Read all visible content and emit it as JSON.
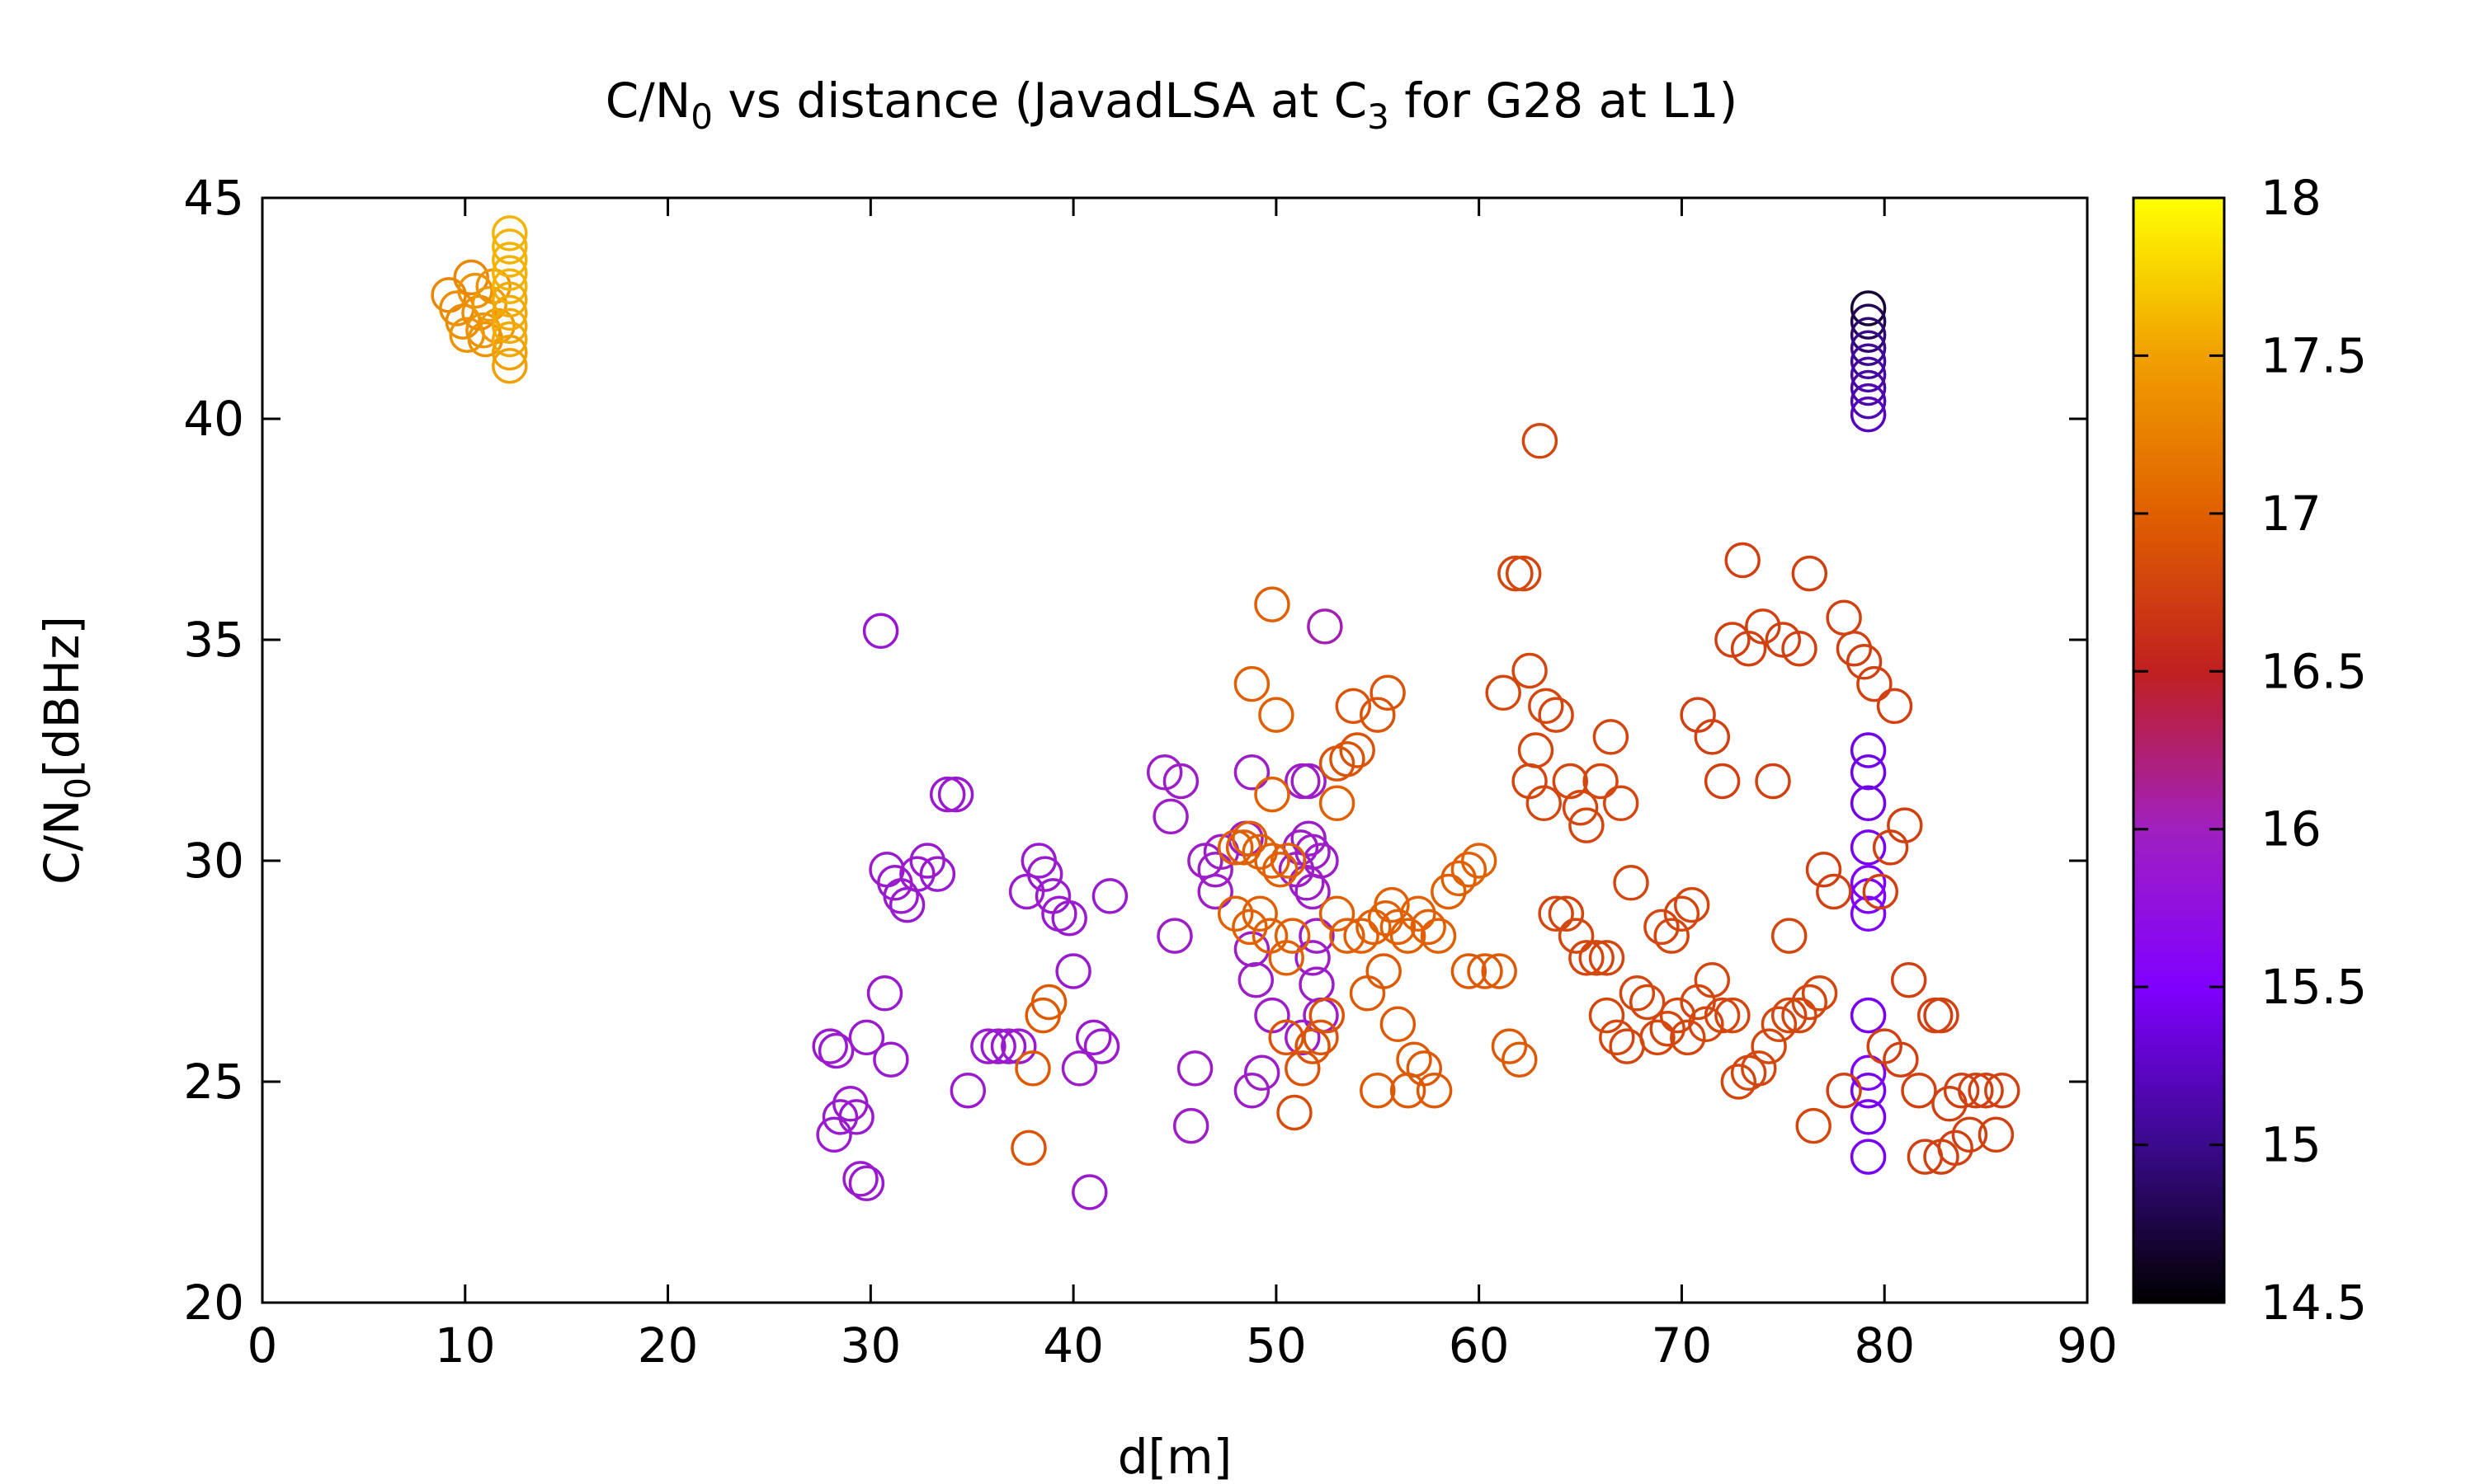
{
  "chart_data": {
    "type": "scatter",
    "title": {
      "prefix": "C/N",
      "sub1": "0",
      "middle": " vs distance (JavadLSA at C",
      "sub2": "3",
      "suffix": " for G28 at L1)"
    },
    "xlabel": "d[m]",
    "ylabel": {
      "prefix": "C/N",
      "sub": "0",
      "suffix": "[dBHz]"
    },
    "xlim": [
      0,
      90
    ],
    "ylim": [
      20,
      45
    ],
    "xticks": [
      "0",
      "10",
      "20",
      "30",
      "40",
      "50",
      "60",
      "70",
      "80",
      "90"
    ],
    "yticks": [
      "20",
      "25",
      "30",
      "35",
      "40",
      "45"
    ],
    "colorbar": {
      "range": [
        14.5,
        18
      ],
      "ticks": [
        "14.5",
        "15",
        "15.5",
        "16",
        "16.5",
        "17",
        "17.5",
        "18"
      ],
      "palette": [
        "#000000",
        "#3a0a8c",
        "#8000ff",
        "#a020c0",
        "#c02020",
        "#e06000",
        "#f0a000",
        "#ffff00"
      ]
    },
    "grid": false,
    "marker": "open-circle",
    "points": [
      [
        9.2,
        42.8,
        17.3
      ],
      [
        9.6,
        42.5,
        17.35
      ],
      [
        9.9,
        42.2,
        17.35
      ],
      [
        10.1,
        41.9,
        17.4
      ],
      [
        10.3,
        43.2,
        17.3
      ],
      [
        10.5,
        42.9,
        17.4
      ],
      [
        10.7,
        42.4,
        17.35
      ],
      [
        10.9,
        42.0,
        17.4
      ],
      [
        11.0,
        41.8,
        17.4
      ],
      [
        11.2,
        42.6,
        17.45
      ],
      [
        11.4,
        43.0,
        17.4
      ],
      [
        11.6,
        42.1,
        17.45
      ],
      [
        12.2,
        44.2,
        17.6
      ],
      [
        12.2,
        43.9,
        17.6
      ],
      [
        12.2,
        43.6,
        17.6
      ],
      [
        12.2,
        43.3,
        17.6
      ],
      [
        12.2,
        43.0,
        17.6
      ],
      [
        12.2,
        42.7,
        17.55
      ],
      [
        12.2,
        42.4,
        17.55
      ],
      [
        12.2,
        42.1,
        17.55
      ],
      [
        12.2,
        41.8,
        17.55
      ],
      [
        12.2,
        41.5,
        17.5
      ],
      [
        12.2,
        41.2,
        17.5
      ],
      [
        79.2,
        42.5,
        14.7
      ],
      [
        79.2,
        42.2,
        14.8
      ],
      [
        79.2,
        41.9,
        14.9
      ],
      [
        79.2,
        41.6,
        15.0
      ],
      [
        79.2,
        41.3,
        15.05
      ],
      [
        79.2,
        41.0,
        15.1
      ],
      [
        79.2,
        40.7,
        15.1
      ],
      [
        79.2,
        40.4,
        15.15
      ],
      [
        79.2,
        40.1,
        15.2
      ],
      [
        79.2,
        32.5,
        15.4
      ],
      [
        79.2,
        32.0,
        15.4
      ],
      [
        79.2,
        31.3,
        15.4
      ],
      [
        79.2,
        30.3,
        15.45
      ],
      [
        79.2,
        29.5,
        15.5
      ],
      [
        79.2,
        29.2,
        15.5
      ],
      [
        79.2,
        28.8,
        15.5
      ],
      [
        79.2,
        26.5,
        15.45
      ],
      [
        79.2,
        25.2,
        15.5
      ],
      [
        79.2,
        24.8,
        15.45
      ],
      [
        79.2,
        24.2,
        15.45
      ],
      [
        79.2,
        23.3,
        15.45
      ],
      [
        30.5,
        35.2,
        15.85
      ],
      [
        33.8,
        31.5,
        15.9
      ],
      [
        34.2,
        31.5,
        15.9
      ],
      [
        30.8,
        29.8,
        15.9
      ],
      [
        31.2,
        29.5,
        15.9
      ],
      [
        31.8,
        29.0,
        15.9
      ],
      [
        32.3,
        29.7,
        15.9
      ],
      [
        32.8,
        30.0,
        15.9
      ],
      [
        33.3,
        29.7,
        15.9
      ],
      [
        31.5,
        29.2,
        15.9
      ],
      [
        30.7,
        27.0,
        15.9
      ],
      [
        29.8,
        26.0,
        15.9
      ],
      [
        31.0,
        25.5,
        15.9
      ],
      [
        28.0,
        25.8,
        15.9
      ],
      [
        28.3,
        25.7,
        15.9
      ],
      [
        28.5,
        24.2,
        15.9
      ],
      [
        29.0,
        24.5,
        15.9
      ],
      [
        29.3,
        24.2,
        15.9
      ],
      [
        28.2,
        23.8,
        15.9
      ],
      [
        29.5,
        22.8,
        15.9
      ],
      [
        29.8,
        22.7,
        15.9
      ],
      [
        34.8,
        24.8,
        15.9
      ],
      [
        35.8,
        25.8,
        15.9
      ],
      [
        36.3,
        25.8,
        15.9
      ],
      [
        36.8,
        25.8,
        15.9
      ],
      [
        37.3,
        25.8,
        15.9
      ],
      [
        37.7,
        29.3,
        15.9
      ],
      [
        38.3,
        30.0,
        15.9
      ],
      [
        38.6,
        29.7,
        15.9
      ],
      [
        39.0,
        29.2,
        15.9
      ],
      [
        39.3,
        28.8,
        15.9
      ],
      [
        39.8,
        28.7,
        15.9
      ],
      [
        41.8,
        29.2,
        15.9
      ],
      [
        40.0,
        27.5,
        15.9
      ],
      [
        41.0,
        26.0,
        15.9
      ],
      [
        41.4,
        25.8,
        15.9
      ],
      [
        40.3,
        25.3,
        15.95
      ],
      [
        40.8,
        22.5,
        15.9
      ],
      [
        44.5,
        32.0,
        15.95
      ],
      [
        44.8,
        31.0,
        15.95
      ],
      [
        45.3,
        31.8,
        15.95
      ],
      [
        45.0,
        28.3,
        15.95
      ],
      [
        46.0,
        25.3,
        15.95
      ],
      [
        45.8,
        24.0,
        15.95
      ],
      [
        46.5,
        30.0,
        15.95
      ],
      [
        47.0,
        29.8,
        15.95
      ],
      [
        47.3,
        30.2,
        15.95
      ],
      [
        47.0,
        29.3,
        15.95
      ],
      [
        48.8,
        32.0,
        15.95
      ],
      [
        48.5,
        30.5,
        15.95
      ],
      [
        48.8,
        28.0,
        15.95
      ],
      [
        49.0,
        27.3,
        15.95
      ],
      [
        49.3,
        25.2,
        15.95
      ],
      [
        48.8,
        24.8,
        15.95
      ],
      [
        49.8,
        26.5,
        15.95
      ],
      [
        51.3,
        31.8,
        15.95
      ],
      [
        51.6,
        31.8,
        15.95
      ],
      [
        51.2,
        30.3,
        15.95
      ],
      [
        51.6,
        30.5,
        15.95
      ],
      [
        51.8,
        30.2,
        15.95
      ],
      [
        52.2,
        30.0,
        15.95
      ],
      [
        51.0,
        29.8,
        15.95
      ],
      [
        51.5,
        29.5,
        15.95
      ],
      [
        51.8,
        29.3,
        15.95
      ],
      [
        52.0,
        28.3,
        15.95
      ],
      [
        51.8,
        27.8,
        15.95
      ],
      [
        52.0,
        27.2,
        15.95
      ],
      [
        52.2,
        26.5,
        15.95
      ],
      [
        51.3,
        26.0,
        15.95
      ],
      [
        52.4,
        35.3,
        16.05
      ],
      [
        49.8,
        35.8,
        17.0
      ],
      [
        48.8,
        34.0,
        17.0
      ],
      [
        50.0,
        33.3,
        17.0
      ],
      [
        53.0,
        31.3,
        17.0
      ],
      [
        49.8,
        31.5,
        17.0
      ],
      [
        48.0,
        30.3,
        17.0
      ],
      [
        48.4,
        30.3,
        17.0
      ],
      [
        48.7,
        30.5,
        17.0
      ],
      [
        49.2,
        30.2,
        17.0
      ],
      [
        49.8,
        30.0,
        17.0
      ],
      [
        50.2,
        29.8,
        17.0
      ],
      [
        50.6,
        30.0,
        17.0
      ],
      [
        48.0,
        28.8,
        17.0
      ],
      [
        48.7,
        28.5,
        17.0
      ],
      [
        49.2,
        28.8,
        17.0
      ],
      [
        49.7,
        28.3,
        17.0
      ],
      [
        50.5,
        27.8,
        17.0
      ],
      [
        50.8,
        28.3,
        17.0
      ],
      [
        50.5,
        26.0,
        16.9
      ],
      [
        51.3,
        25.3,
        16.9
      ],
      [
        51.8,
        25.8,
        16.9
      ],
      [
        52.5,
        26.5,
        16.9
      ],
      [
        52.2,
        26.0,
        16.9
      ],
      [
        50.9,
        24.3,
        16.85
      ],
      [
        53.0,
        32.2,
        16.9
      ],
      [
        53.5,
        32.3,
        16.9
      ],
      [
        54.0,
        32.5,
        16.9
      ],
      [
        53.8,
        33.5,
        16.9
      ],
      [
        55.0,
        33.3,
        16.9
      ],
      [
        55.5,
        33.8,
        16.9
      ],
      [
        53.0,
        28.8,
        17.0
      ],
      [
        53.5,
        28.3,
        17.0
      ],
      [
        54.2,
        28.3,
        17.0
      ],
      [
        54.8,
        28.5,
        17.0
      ],
      [
        55.4,
        28.7,
        17.0
      ],
      [
        55.7,
        29.0,
        17.0
      ],
      [
        56.0,
        28.5,
        17.0
      ],
      [
        56.5,
        28.3,
        17.0
      ],
      [
        57.0,
        28.8,
        17.0
      ],
      [
        57.5,
        28.5,
        17.0
      ],
      [
        58.0,
        28.3,
        17.0
      ],
      [
        58.5,
        29.3,
        17.0
      ],
      [
        59.0,
        29.6,
        17.0
      ],
      [
        59.5,
        29.8,
        17.0
      ],
      [
        60.0,
        30.0,
        17.0
      ],
      [
        54.5,
        27.0,
        16.95
      ],
      [
        55.3,
        27.5,
        16.95
      ],
      [
        56.0,
        26.3,
        16.95
      ],
      [
        56.8,
        25.5,
        16.95
      ],
      [
        57.3,
        25.3,
        16.95
      ],
      [
        55.0,
        24.8,
        16.95
      ],
      [
        56.5,
        24.8,
        16.95
      ],
      [
        57.8,
        24.8,
        16.95
      ],
      [
        59.5,
        27.5,
        16.95
      ],
      [
        60.3,
        27.5,
        16.95
      ],
      [
        61.0,
        27.5,
        16.95
      ],
      [
        61.5,
        25.8,
        16.95
      ],
      [
        62.0,
        25.5,
        16.95
      ],
      [
        63.0,
        39.5,
        16.8
      ],
      [
        61.8,
        36.5,
        16.8
      ],
      [
        62.2,
        36.5,
        16.8
      ],
      [
        62.5,
        34.3,
        16.8
      ],
      [
        61.2,
        33.8,
        16.8
      ],
      [
        63.3,
        33.5,
        16.8
      ],
      [
        63.8,
        33.3,
        16.8
      ],
      [
        62.8,
        32.5,
        16.8
      ],
      [
        62.5,
        31.8,
        16.8
      ],
      [
        63.2,
        31.3,
        16.8
      ],
      [
        64.5,
        31.8,
        16.8
      ],
      [
        65.0,
        31.2,
        16.8
      ],
      [
        65.3,
        30.8,
        16.8
      ],
      [
        66.0,
        31.8,
        16.8
      ],
      [
        66.5,
        32.8,
        16.8
      ],
      [
        67.0,
        31.3,
        16.8
      ],
      [
        63.8,
        28.8,
        16.8
      ],
      [
        64.3,
        28.8,
        16.8
      ],
      [
        64.8,
        28.3,
        16.8
      ],
      [
        65.3,
        27.8,
        16.8
      ],
      [
        65.8,
        27.8,
        16.8
      ],
      [
        66.3,
        27.8,
        16.8
      ],
      [
        67.5,
        29.5,
        16.8
      ],
      [
        66.3,
        26.5,
        16.8
      ],
      [
        66.8,
        26.0,
        16.8
      ],
      [
        67.3,
        25.8,
        16.8
      ],
      [
        67.8,
        27.0,
        16.8
      ],
      [
        68.3,
        26.8,
        16.8
      ],
      [
        68.8,
        26.0,
        16.8
      ],
      [
        69.3,
        26.2,
        16.8
      ],
      [
        69.8,
        26.5,
        16.8
      ],
      [
        70.3,
        26.0,
        16.8
      ],
      [
        69.0,
        28.5,
        16.8
      ],
      [
        69.5,
        28.3,
        16.8
      ],
      [
        70.0,
        28.8,
        16.8
      ],
      [
        70.5,
        29.0,
        16.8
      ],
      [
        70.8,
        26.8,
        16.8
      ],
      [
        71.2,
        26.3,
        16.8
      ],
      [
        71.5,
        27.3,
        16.8
      ],
      [
        72.0,
        26.5,
        16.8
      ],
      [
        72.5,
        26.5,
        16.8
      ],
      [
        70.8,
        33.3,
        16.75
      ],
      [
        71.5,
        32.8,
        16.75
      ],
      [
        72.0,
        31.8,
        16.75
      ],
      [
        72.5,
        35.0,
        16.75
      ],
      [
        73.0,
        36.8,
        16.75
      ],
      [
        73.3,
        34.8,
        16.75
      ],
      [
        74.0,
        35.3,
        16.75
      ],
      [
        74.5,
        31.8,
        16.75
      ],
      [
        75.0,
        35.0,
        16.75
      ],
      [
        75.8,
        34.8,
        16.75
      ],
      [
        76.3,
        36.5,
        16.75
      ],
      [
        72.8,
        25.0,
        16.8
      ],
      [
        73.3,
        25.2,
        16.8
      ],
      [
        73.8,
        25.3,
        16.8
      ],
      [
        74.3,
        25.8,
        16.8
      ],
      [
        74.8,
        26.3,
        16.8
      ],
      [
        75.3,
        26.5,
        16.8
      ],
      [
        75.8,
        26.5,
        16.8
      ],
      [
        76.3,
        26.8,
        16.8
      ],
      [
        76.8,
        27.0,
        16.8
      ],
      [
        75.3,
        28.3,
        16.8
      ],
      [
        76.5,
        24.0,
        16.8
      ],
      [
        77.0,
        29.8,
        16.75
      ],
      [
        77.5,
        29.3,
        16.75
      ],
      [
        78.0,
        35.5,
        16.75
      ],
      [
        78.5,
        34.8,
        16.75
      ],
      [
        79.0,
        34.5,
        16.75
      ],
      [
        79.5,
        34.0,
        16.75
      ],
      [
        80.5,
        33.5,
        16.75
      ],
      [
        81.0,
        30.8,
        16.75
      ],
      [
        80.3,
        30.3,
        16.75
      ],
      [
        79.8,
        29.3,
        16.75
      ],
      [
        78.0,
        24.8,
        16.75
      ],
      [
        80.0,
        25.8,
        16.75
      ],
      [
        80.8,
        25.5,
        16.75
      ],
      [
        81.2,
        27.3,
        16.75
      ],
      [
        81.7,
        24.8,
        16.75
      ],
      [
        82.0,
        23.3,
        16.75
      ],
      [
        82.5,
        26.5,
        16.75
      ],
      [
        82.8,
        26.5,
        16.75
      ],
      [
        82.8,
        23.3,
        16.75
      ],
      [
        83.2,
        24.5,
        16.75
      ],
      [
        83.5,
        23.5,
        16.75
      ],
      [
        83.8,
        24.8,
        16.75
      ],
      [
        84.2,
        23.8,
        16.75
      ],
      [
        84.5,
        24.8,
        16.75
      ],
      [
        85.0,
        24.8,
        16.75
      ],
      [
        85.5,
        23.8,
        16.75
      ],
      [
        85.8,
        24.8,
        16.75
      ],
      [
        38.0,
        25.3,
        16.95
      ],
      [
        38.5,
        26.5,
        16.95
      ],
      [
        38.8,
        26.8,
        16.95
      ],
      [
        37.8,
        23.5,
        16.9
      ]
    ]
  }
}
